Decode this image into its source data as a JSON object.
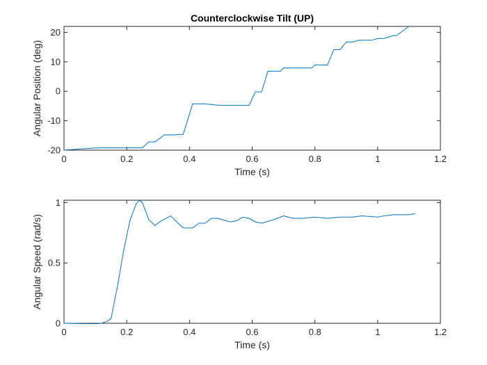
{
  "chart_data": [
    {
      "type": "line",
      "title": "Counterclockwise Tilt (UP)",
      "xlabel": "Time (s)",
      "ylabel": "Angular Position (deg)",
      "xlim": [
        0,
        1.2
      ],
      "ylim": [
        -20,
        22
      ],
      "xticks": [
        "0",
        "0.2",
        "0.4",
        "0.6",
        "0.8",
        "1",
        "1.2"
      ],
      "yticks": [
        "-20",
        "-10",
        "0",
        "10",
        "20"
      ],
      "grid": false,
      "color": "#0072BD",
      "series": [
        {
          "x": [
            0,
            0.05,
            0.11,
            0.15,
            0.2,
            0.25,
            0.27,
            0.29,
            0.32,
            0.35,
            0.38,
            0.41,
            0.45,
            0.5,
            0.55,
            0.59,
            0.61,
            0.63,
            0.65,
            0.69,
            0.7,
            0.74,
            0.79,
            0.8,
            0.84,
            0.86,
            0.88,
            0.9,
            0.92,
            0.94,
            0.98,
            1.0,
            1.02,
            1.05,
            1.06,
            1.08,
            1.1
          ],
          "y": [
            -20,
            -19.6,
            -19.2,
            -19.2,
            -19.2,
            -19.2,
            -17.2,
            -17.2,
            -14.8,
            -14.8,
            -14.6,
            -4.3,
            -4.3,
            -4.8,
            -4.8,
            -4.8,
            -0.2,
            -0.2,
            6.8,
            6.8,
            7.9,
            7.9,
            7.9,
            8.9,
            8.9,
            14.1,
            14.1,
            16.7,
            16.7,
            17.3,
            17.3,
            17.9,
            17.9,
            18.9,
            18.9,
            20.5,
            22
          ]
        }
      ]
    },
    {
      "type": "line",
      "title": "",
      "xlabel": "Time (s)",
      "ylabel": "Angular Speed (rad/s)",
      "xlim": [
        0,
        1.2
      ],
      "ylim": [
        0,
        1.02
      ],
      "xticks": [
        "0",
        "0.2",
        "0.4",
        "0.6",
        "0.8",
        "1",
        "1.2"
      ],
      "yticks": [
        "0",
        "0.5",
        "1"
      ],
      "grid": false,
      "color": "#0072BD",
      "series": [
        {
          "x": [
            0,
            0.05,
            0.1,
            0.12,
            0.14,
            0.15,
            0.17,
            0.19,
            0.21,
            0.23,
            0.24,
            0.25,
            0.27,
            0.29,
            0.31,
            0.34,
            0.38,
            0.41,
            0.43,
            0.45,
            0.47,
            0.49,
            0.53,
            0.55,
            0.57,
            0.59,
            0.61,
            0.63,
            0.67,
            0.7,
            0.73,
            0.76,
            0.8,
            0.84,
            0.88,
            0.92,
            0.95,
            1.0,
            1.02,
            1.05,
            1.1,
            1.12
          ],
          "y": [
            0.0,
            -0.002,
            -0.005,
            0.0,
            0.02,
            0.04,
            0.3,
            0.6,
            0.85,
            0.99,
            1.02,
            1.0,
            0.86,
            0.81,
            0.85,
            0.89,
            0.79,
            0.79,
            0.83,
            0.83,
            0.87,
            0.87,
            0.84,
            0.85,
            0.88,
            0.87,
            0.84,
            0.83,
            0.86,
            0.89,
            0.87,
            0.87,
            0.88,
            0.87,
            0.88,
            0.88,
            0.89,
            0.88,
            0.89,
            0.9,
            0.9,
            0.91
          ]
        }
      ]
    }
  ]
}
